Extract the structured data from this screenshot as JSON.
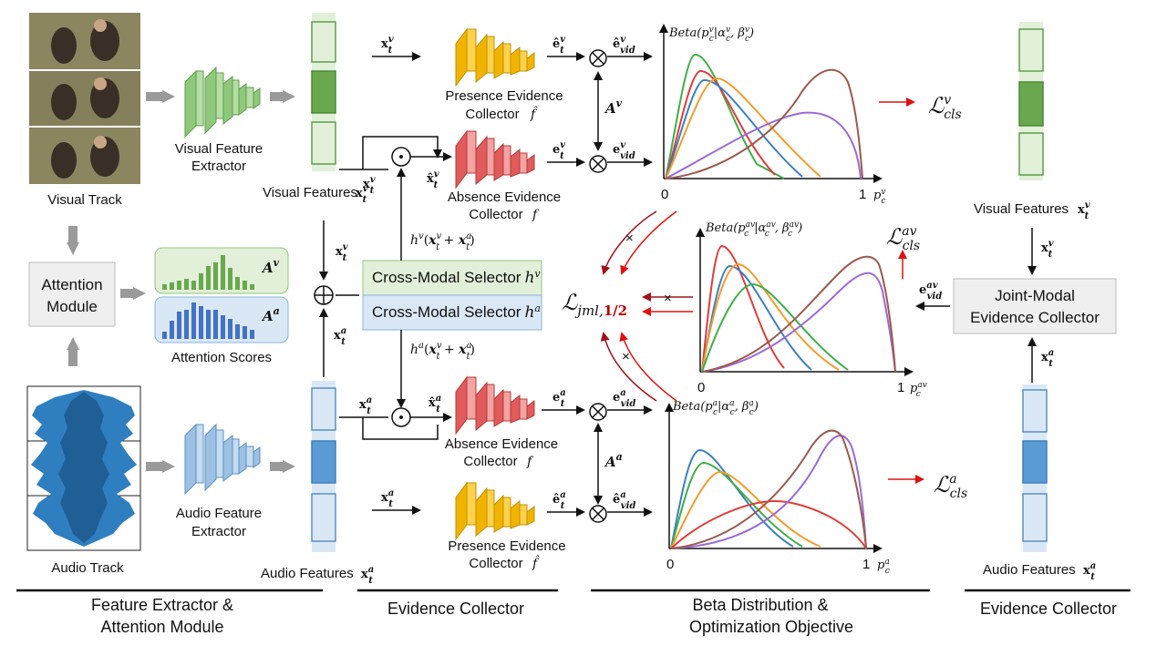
{
  "colors": {
    "visual_green": "#6aa84f",
    "visual_green_light": "#e2f0d9",
    "audio_blue": "#5b9bd5",
    "audio_blue_light": "#dae8f6",
    "presence_gold": "#e6b800",
    "absence_red": "#e05c5c",
    "arrow_red": "#e01010",
    "dark_red": "#a0121b",
    "curve_blue": "#3a7fc1",
    "curve_orange": "#f39c2b",
    "curve_green": "#3fae49",
    "curve_red": "#e03b3b",
    "curve_purple": "#9b6bd6",
    "curve_brown": "#9b5a4c"
  },
  "labels": {
    "visual_track": "Visual Track",
    "audio_track": "Audio Track",
    "attention_module_line1": "Attention",
    "attention_module_line2": "Module",
    "attention_scores": "Attention Scores",
    "visual_extractor_line1": "Visual Feature",
    "visual_extractor_line2": "Extractor",
    "audio_extractor_line1": "Audio Feature",
    "audio_extractor_line2": "Extractor",
    "visual_features": "Visual Features",
    "audio_features": "Audio Features",
    "presence_collector_line1": "Presence Evidence",
    "presence_collector_line2": "Collector",
    "absence_collector_line1": "Absence Evidence",
    "absence_collector_line2": "Collector",
    "cross_modal_v": "Cross-Modal Selector",
    "cross_modal_a": "Cross-Modal Selector",
    "joint_modal_line1": "Joint-Modal",
    "joint_modal_line2": "Evidence Collector",
    "axis_zero": "0",
    "axis_one": "1"
  },
  "math": {
    "xv": "x",
    "xa": "x",
    "A_v": "A",
    "A_a": "A",
    "h_v_expr": "(x + x)",
    "beta_v": "Beta(p|α, β)",
    "beta_av": "Beta(p|α, β)",
    "beta_a": "Beta(p|α, β)",
    "loss_v": "ℒ",
    "loss_av": "ℒ",
    "loss_a": "ℒ",
    "loss_jml": "ℒ",
    "jml_sub": "jml,",
    "jml_frac": "1/2"
  },
  "sections": {
    "feature_line1": "Feature Extractor &",
    "feature_line2": "Attention Module",
    "evidence_collector": "Evidence Collector",
    "beta_line1": "Beta Distribution &",
    "beta_line2": "Optimization  Objective",
    "evidence_collector_right": "Evidence Collector"
  }
}
